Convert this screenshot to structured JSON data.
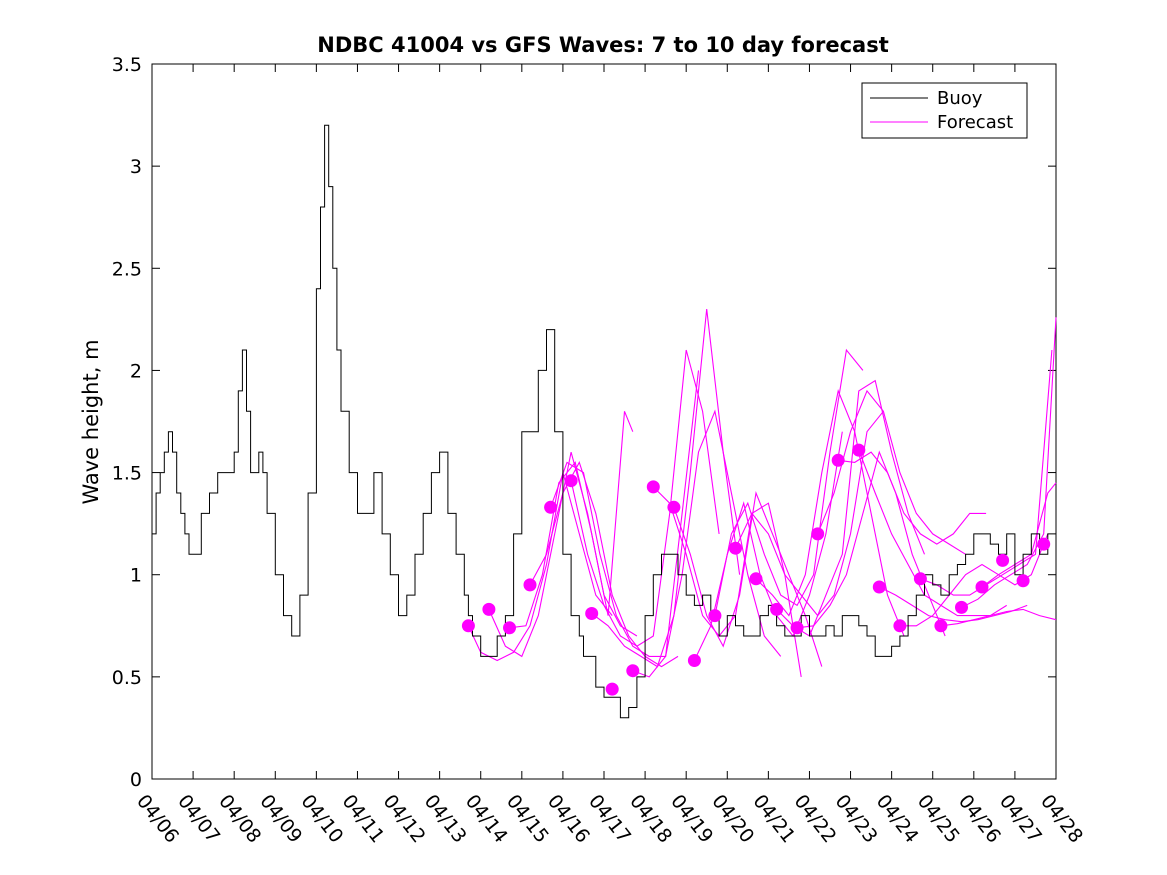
{
  "chart_data": {
    "type": "line",
    "title": "NDBC 41004 vs GFS Waves: 7 to 10 day forecast",
    "xlabel": "",
    "ylabel": "Wave height, m",
    "x_ticks": [
      "04/06",
      "04/07",
      "04/08",
      "04/09",
      "04/10",
      "04/11",
      "04/12",
      "04/13",
      "04/14",
      "04/15",
      "04/16",
      "04/17",
      "04/18",
      "04/19",
      "04/20",
      "04/21",
      "04/22",
      "04/23",
      "04/24",
      "04/25",
      "04/26",
      "04/27",
      "04/28"
    ],
    "xlim": [
      "04/06",
      "04/28"
    ],
    "ylim": [
      0,
      3.5
    ],
    "y_ticks": [
      0,
      0.5,
      1,
      1.5,
      2,
      2.5,
      3,
      3.5
    ],
    "grid": false,
    "legend": {
      "position": "top-right",
      "entries": [
        "Buoy",
        "Forecast"
      ]
    },
    "colors": {
      "buoy": "#000000",
      "forecast": "#ff00ff"
    },
    "series": [
      {
        "name": "Buoy",
        "x_days_from_0406": [
          0,
          0.1,
          0.2,
          0.3,
          0.4,
          0.5,
          0.6,
          0.7,
          0.8,
          0.9,
          1.0,
          1.2,
          1.4,
          1.6,
          1.8,
          1.9,
          2.0,
          2.1,
          2.2,
          2.3,
          2.4,
          2.5,
          2.6,
          2.7,
          2.8,
          3.0,
          3.2,
          3.4,
          3.6,
          3.8,
          4.0,
          4.1,
          4.2,
          4.3,
          4.4,
          4.5,
          4.6,
          4.8,
          5.0,
          5.2,
          5.4,
          5.6,
          5.8,
          6.0,
          6.2,
          6.4,
          6.6,
          6.8,
          7.0,
          7.2,
          7.4,
          7.6,
          7.7,
          7.8,
          8.0,
          8.2,
          8.4,
          8.6,
          8.8,
          9.0,
          9.2,
          9.4,
          9.6,
          9.8,
          10.0,
          10.2,
          10.4,
          10.5,
          10.6,
          10.8,
          11.0,
          11.2,
          11.4,
          11.6,
          11.8,
          12.0,
          12.2,
          12.4,
          12.6,
          12.8,
          13.0,
          13.2,
          13.4,
          13.6,
          13.8,
          14.0,
          14.2,
          14.4,
          14.6,
          14.8,
          15.0,
          15.2,
          15.4,
          15.6,
          15.8,
          16.0,
          16.2,
          16.4,
          16.6,
          16.8,
          17.0,
          17.2,
          17.4,
          17.6,
          17.8,
          18.0,
          18.2,
          18.4,
          18.6,
          18.8,
          19.0,
          19.2,
          19.4,
          19.6,
          19.8,
          20.0,
          20.2,
          20.4,
          20.6,
          20.8,
          21.0,
          21.2,
          21.4,
          21.6,
          21.8,
          22.0
        ],
        "values": [
          1.2,
          1.4,
          1.5,
          1.6,
          1.7,
          1.6,
          1.4,
          1.3,
          1.2,
          1.1,
          1.1,
          1.3,
          1.4,
          1.5,
          1.5,
          1.5,
          1.6,
          1.9,
          2.1,
          1.8,
          1.5,
          1.5,
          1.6,
          1.5,
          1.3,
          1.0,
          0.8,
          0.7,
          0.9,
          1.4,
          2.4,
          2.8,
          3.2,
          2.9,
          2.5,
          2.1,
          1.8,
          1.5,
          1.3,
          1.3,
          1.5,
          1.2,
          1.0,
          0.8,
          0.9,
          1.1,
          1.3,
          1.5,
          1.6,
          1.3,
          1.1,
          0.9,
          0.8,
          0.7,
          0.6,
          0.6,
          0.7,
          0.8,
          1.2,
          1.7,
          1.7,
          2.0,
          2.2,
          1.7,
          1.1,
          0.8,
          0.7,
          0.6,
          0.6,
          0.45,
          0.4,
          0.4,
          0.3,
          0.35,
          0.5,
          0.8,
          1.0,
          1.1,
          1.1,
          1.0,
          0.9,
          0.85,
          0.9,
          0.8,
          0.7,
          0.8,
          0.75,
          0.7,
          0.7,
          0.8,
          0.85,
          0.75,
          0.7,
          0.7,
          0.8,
          0.7,
          0.7,
          0.75,
          0.7,
          0.8,
          0.8,
          0.75,
          0.7,
          0.6,
          0.6,
          0.65,
          0.7,
          0.8,
          0.9,
          1.0,
          0.95,
          0.9,
          1.0,
          1.05,
          1.1,
          1.2,
          1.2,
          1.15,
          1.1,
          1.2,
          1.0,
          1.1,
          1.2,
          1.1,
          1.2,
          1.2
        ]
      },
      {
        "name": "Forecast",
        "runs": [
          {
            "x": [
              7.7,
              8.0,
              8.4,
              8.8,
              9.2,
              9.6,
              10.0,
              10.4,
              10.8,
              11.2
            ],
            "y": [
              0.75,
              0.62,
              0.58,
              0.62,
              0.75,
              1.05,
              1.5,
              1.2,
              0.9,
              0.8
            ]
          },
          {
            "x": [
              8.2,
              8.6,
              9.0,
              9.4,
              9.8,
              10.2,
              10.6,
              11.0,
              11.4,
              11.8
            ],
            "y": [
              0.83,
              0.65,
              0.6,
              0.8,
              1.2,
              1.6,
              1.3,
              0.9,
              0.75,
              0.7
            ]
          },
          {
            "x": [
              8.7,
              9.1,
              9.5,
              9.9,
              10.3,
              10.7,
              11.1,
              11.5,
              11.7
            ],
            "y": [
              0.74,
              0.75,
              1.0,
              1.45,
              1.55,
              1.2,
              0.8,
              1.8,
              1.7
            ]
          },
          {
            "x": [
              9.2,
              9.6,
              10.0,
              10.4,
              10.8,
              11.2,
              11.6,
              12.0,
              12.4,
              12.8
            ],
            "y": [
              0.95,
              1.1,
              1.4,
              1.55,
              1.3,
              0.9,
              0.7,
              0.6,
              0.55,
              0.6
            ]
          },
          {
            "x": [
              9.7,
              10.1,
              10.5,
              10.9,
              11.3,
              11.7,
              12.1,
              12.5,
              12.9,
              13.3
            ],
            "y": [
              1.33,
              1.55,
              1.5,
              1.1,
              0.8,
              0.65,
              0.6,
              0.6,
              1.3,
              2.0
            ]
          },
          {
            "x": [
              10.2,
              10.6,
              11.0,
              11.4,
              11.8,
              12.2,
              12.6,
              13.0,
              13.4,
              13.8
            ],
            "y": [
              1.46,
              1.1,
              0.85,
              0.7,
              0.65,
              0.7,
              1.3,
              2.1,
              1.8,
              1.2
            ]
          },
          {
            "x": [
              10.7,
              11.1,
              11.5,
              11.9,
              12.3,
              12.7,
              13.1,
              13.5,
              13.9,
              14.3
            ],
            "y": [
              0.81,
              0.75,
              0.65,
              0.6,
              0.55,
              0.8,
              1.5,
              2.3,
              1.6,
              1.0
            ]
          },
          {
            "x": [
              11.7,
              12.1,
              12.5,
              12.9,
              13.3,
              13.7,
              14.1,
              14.5,
              14.9,
              15.3
            ],
            "y": [
              0.53,
              0.5,
              0.6,
              1.0,
              1.6,
              1.8,
              1.4,
              1.0,
              0.7,
              0.6
            ]
          },
          {
            "x": [
              12.2,
              12.6,
              13.0,
              13.4,
              13.8,
              14.2,
              14.6,
              15.0,
              15.4,
              15.8
            ],
            "y": [
              1.43,
              1.35,
              1.1,
              0.8,
              0.7,
              0.8,
              1.3,
              1.35,
              1.0,
              0.5
            ]
          },
          {
            "x": [
              12.7,
              13.1,
              13.5,
              13.9,
              14.3,
              14.7,
              15.1,
              15.5,
              15.9,
              16.3
            ],
            "y": [
              1.33,
              1.1,
              0.8,
              0.65,
              0.9,
              1.4,
              1.2,
              1.0,
              0.8,
              0.55
            ]
          },
          {
            "x": [
              13.2,
              13.6,
              14.0,
              14.4,
              14.8,
              15.2,
              15.6,
              16.0,
              16.4,
              16.8
            ],
            "y": [
              0.58,
              0.75,
              1.1,
              1.35,
              1.0,
              0.8,
              0.7,
              0.9,
              1.2,
              1.7
            ]
          },
          {
            "x": [
              13.7,
              14.1,
              14.5,
              14.9,
              15.3,
              15.7,
              16.1,
              16.5,
              16.9,
              17.3
            ],
            "y": [
              0.8,
              1.2,
              1.35,
              1.1,
              0.9,
              0.85,
              1.0,
              1.6,
              2.1,
              2.0
            ]
          },
          {
            "x": [
              14.2,
              14.6,
              15.0,
              15.4,
              15.8,
              16.2,
              16.6,
              17.0,
              17.4,
              17.8
            ],
            "y": [
              1.13,
              1.3,
              1.2,
              1.0,
              0.9,
              0.8,
              0.9,
              1.2,
              1.7,
              1.8
            ]
          },
          {
            "x": [
              14.7,
              15.1,
              15.5,
              15.9,
              16.3,
              16.7,
              17.1,
              17.5,
              17.9,
              18.3
            ],
            "y": [
              0.98,
              0.9,
              0.8,
              1.0,
              1.5,
              1.9,
              1.7,
              1.3,
              0.9,
              0.7
            ]
          },
          {
            "x": [
              15.2,
              15.6,
              16.0,
              16.4,
              16.8,
              17.2,
              17.6,
              18.0,
              18.4,
              18.8
            ],
            "y": [
              0.83,
              0.75,
              0.7,
              0.9,
              1.1,
              1.9,
              1.95,
              1.6,
              1.3,
              1.1
            ]
          },
          {
            "x": [
              15.7,
              16.1,
              16.5,
              16.9,
              17.3,
              17.7,
              18.1,
              18.5,
              18.9,
              19.3
            ],
            "y": [
              0.74,
              0.75,
              0.85,
              1.0,
              1.3,
              1.6,
              1.4,
              1.1,
              0.9,
              0.7
            ]
          },
          {
            "x": [
              16.2,
              16.6,
              17.0,
              17.4,
              17.8,
              18.2,
              18.6,
              19.0,
              19.4,
              19.8
            ],
            "y": [
              1.2,
              1.4,
              1.7,
              1.9,
              1.8,
              1.5,
              1.3,
              1.2,
              1.15,
              1.1
            ]
          },
          {
            "x": [
              16.7,
              17.1,
              17.5,
              17.9,
              18.3,
              18.7,
              19.1,
              19.5,
              19.9,
              20.3
            ],
            "y": [
              1.56,
              1.55,
              1.6,
              1.5,
              1.3,
              1.2,
              1.15,
              1.2,
              1.3,
              1.3
            ]
          },
          {
            "x": [
              17.2,
              17.6,
              18.0,
              18.4,
              18.8,
              19.2,
              19.6,
              20.0,
              20.4,
              20.8
            ],
            "y": [
              1.61,
              1.4,
              1.2,
              1.05,
              0.9,
              0.85,
              0.8,
              0.8,
              0.8,
              0.85
            ]
          },
          {
            "x": [
              17.7,
              18.1,
              18.5,
              18.9,
              19.3,
              19.7,
              20.1,
              20.5,
              20.9,
              21.3
            ],
            "y": [
              0.94,
              0.9,
              0.85,
              0.8,
              0.78,
              0.77,
              0.78,
              0.8,
              0.82,
              0.85
            ]
          },
          {
            "x": [
              18.2,
              18.6,
              19.0,
              19.4,
              19.8,
              20.2,
              20.6,
              21.0,
              21.4,
              21.8
            ],
            "y": [
              0.75,
              0.75,
              0.8,
              0.9,
              1.0,
              1.05,
              1.0,
              0.95,
              1.0,
              1.2
            ]
          },
          {
            "x": [
              18.7,
              19.1,
              19.5,
              19.9,
              20.3,
              20.7,
              21.1,
              21.5,
              21.9
            ],
            "y": [
              0.98,
              0.95,
              0.9,
              0.9,
              0.95,
              1.0,
              1.05,
              1.1,
              2.1
            ]
          },
          {
            "x": [
              19.2,
              19.6,
              20.0,
              20.4,
              20.8,
              21.2,
              21.6,
              22.0
            ],
            "y": [
              0.75,
              0.76,
              0.78,
              0.8,
              0.82,
              0.83,
              0.8,
              0.78
            ]
          },
          {
            "x": [
              19.7,
              20.1,
              20.5,
              20.9,
              21.3,
              21.7,
              22.0
            ],
            "y": [
              0.84,
              0.88,
              0.95,
              1.0,
              1.05,
              1.2,
              2.26
            ]
          },
          {
            "x": [
              20.2,
              20.6,
              21.0,
              21.4,
              21.8,
              22.0
            ],
            "y": [
              0.94,
              1.0,
              1.05,
              1.1,
              1.4,
              1.45
            ]
          }
        ],
        "markers_x": [
          7.7,
          8.2,
          8.7,
          9.2,
          9.7,
          10.2,
          10.7,
          11.2,
          11.7,
          12.2,
          12.7,
          13.2,
          13.7,
          14.2,
          14.7,
          15.2,
          15.7,
          16.2,
          16.7,
          17.2,
          17.7,
          18.2,
          18.7,
          19.2,
          19.7,
          20.2,
          20.7,
          21.2,
          21.7
        ],
        "markers_y": [
          0.75,
          0.83,
          0.74,
          0.95,
          1.33,
          1.46,
          0.81,
          0.44,
          0.53,
          1.43,
          1.33,
          0.58,
          0.8,
          1.13,
          0.98,
          0.83,
          0.74,
          1.2,
          1.56,
          1.61,
          0.94,
          0.75,
          0.98,
          0.75,
          0.84,
          0.94,
          1.07,
          0.97,
          1.15
        ]
      }
    ]
  }
}
